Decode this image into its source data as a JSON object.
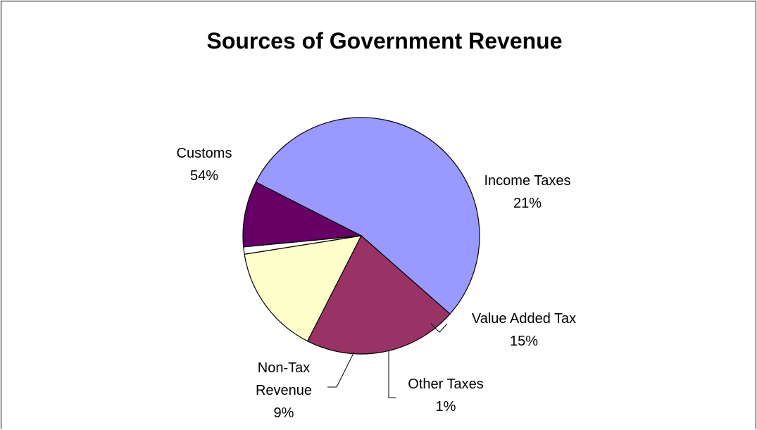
{
  "chart_data": {
    "type": "pie",
    "title": "Sources of Government Revenue",
    "slices": [
      {
        "name": "Customs",
        "value": 54,
        "label": "54%",
        "color": "#9999FF"
      },
      {
        "name": "Income Taxes",
        "value": 21,
        "label": "21%",
        "color": "#993366"
      },
      {
        "name": "Value Added Tax",
        "value": 15,
        "label": "15%",
        "color": "#FFFFCC"
      },
      {
        "name": "Other Taxes",
        "value": 1,
        "label": "1%",
        "color": "#FFFFFF"
      },
      {
        "name": "Non-Tax Revenue",
        "value": 9,
        "label": "9%",
        "color": "#660066"
      }
    ],
    "legend": "none"
  }
}
